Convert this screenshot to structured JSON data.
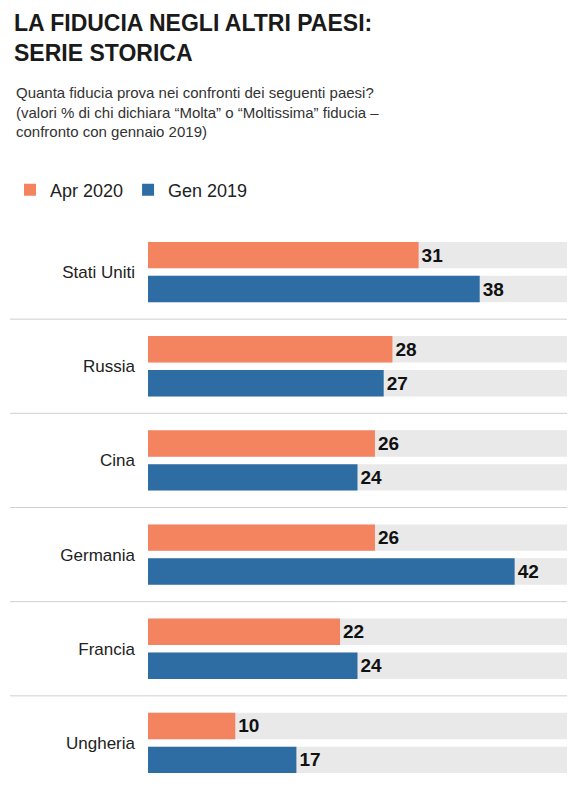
{
  "chart_data": {
    "type": "bar",
    "orientation": "horizontal",
    "title": [
      "LA FIDUCIA NEGLI ALTRI PAESI:",
      "SERIE STORICA"
    ],
    "subtitle": [
      "Quanta fiducia prova nei confronti dei seguenti paesi?",
      "(valori % di chi dichiara “Molta” o “Moltissima” fiducia –",
      "confronto con gennaio 2019)"
    ],
    "categories": [
      "Stati Uniti",
      "Russia",
      "Cina",
      "Germania",
      "Francia",
      "Ungheria"
    ],
    "series": [
      {
        "name": "Apr 2020",
        "color": "#f4845f",
        "values": [
          31,
          28,
          26,
          26,
          22,
          10
        ]
      },
      {
        "name": "Gen 2019",
        "color": "#2e6da4",
        "values": [
          38,
          27,
          24,
          42,
          24,
          17
        ]
      }
    ],
    "xlim": [
      0,
      48
    ],
    "xticks": [],
    "grid": false,
    "legend": "top left",
    "data_labels": true,
    "tick_labels": "y"
  }
}
